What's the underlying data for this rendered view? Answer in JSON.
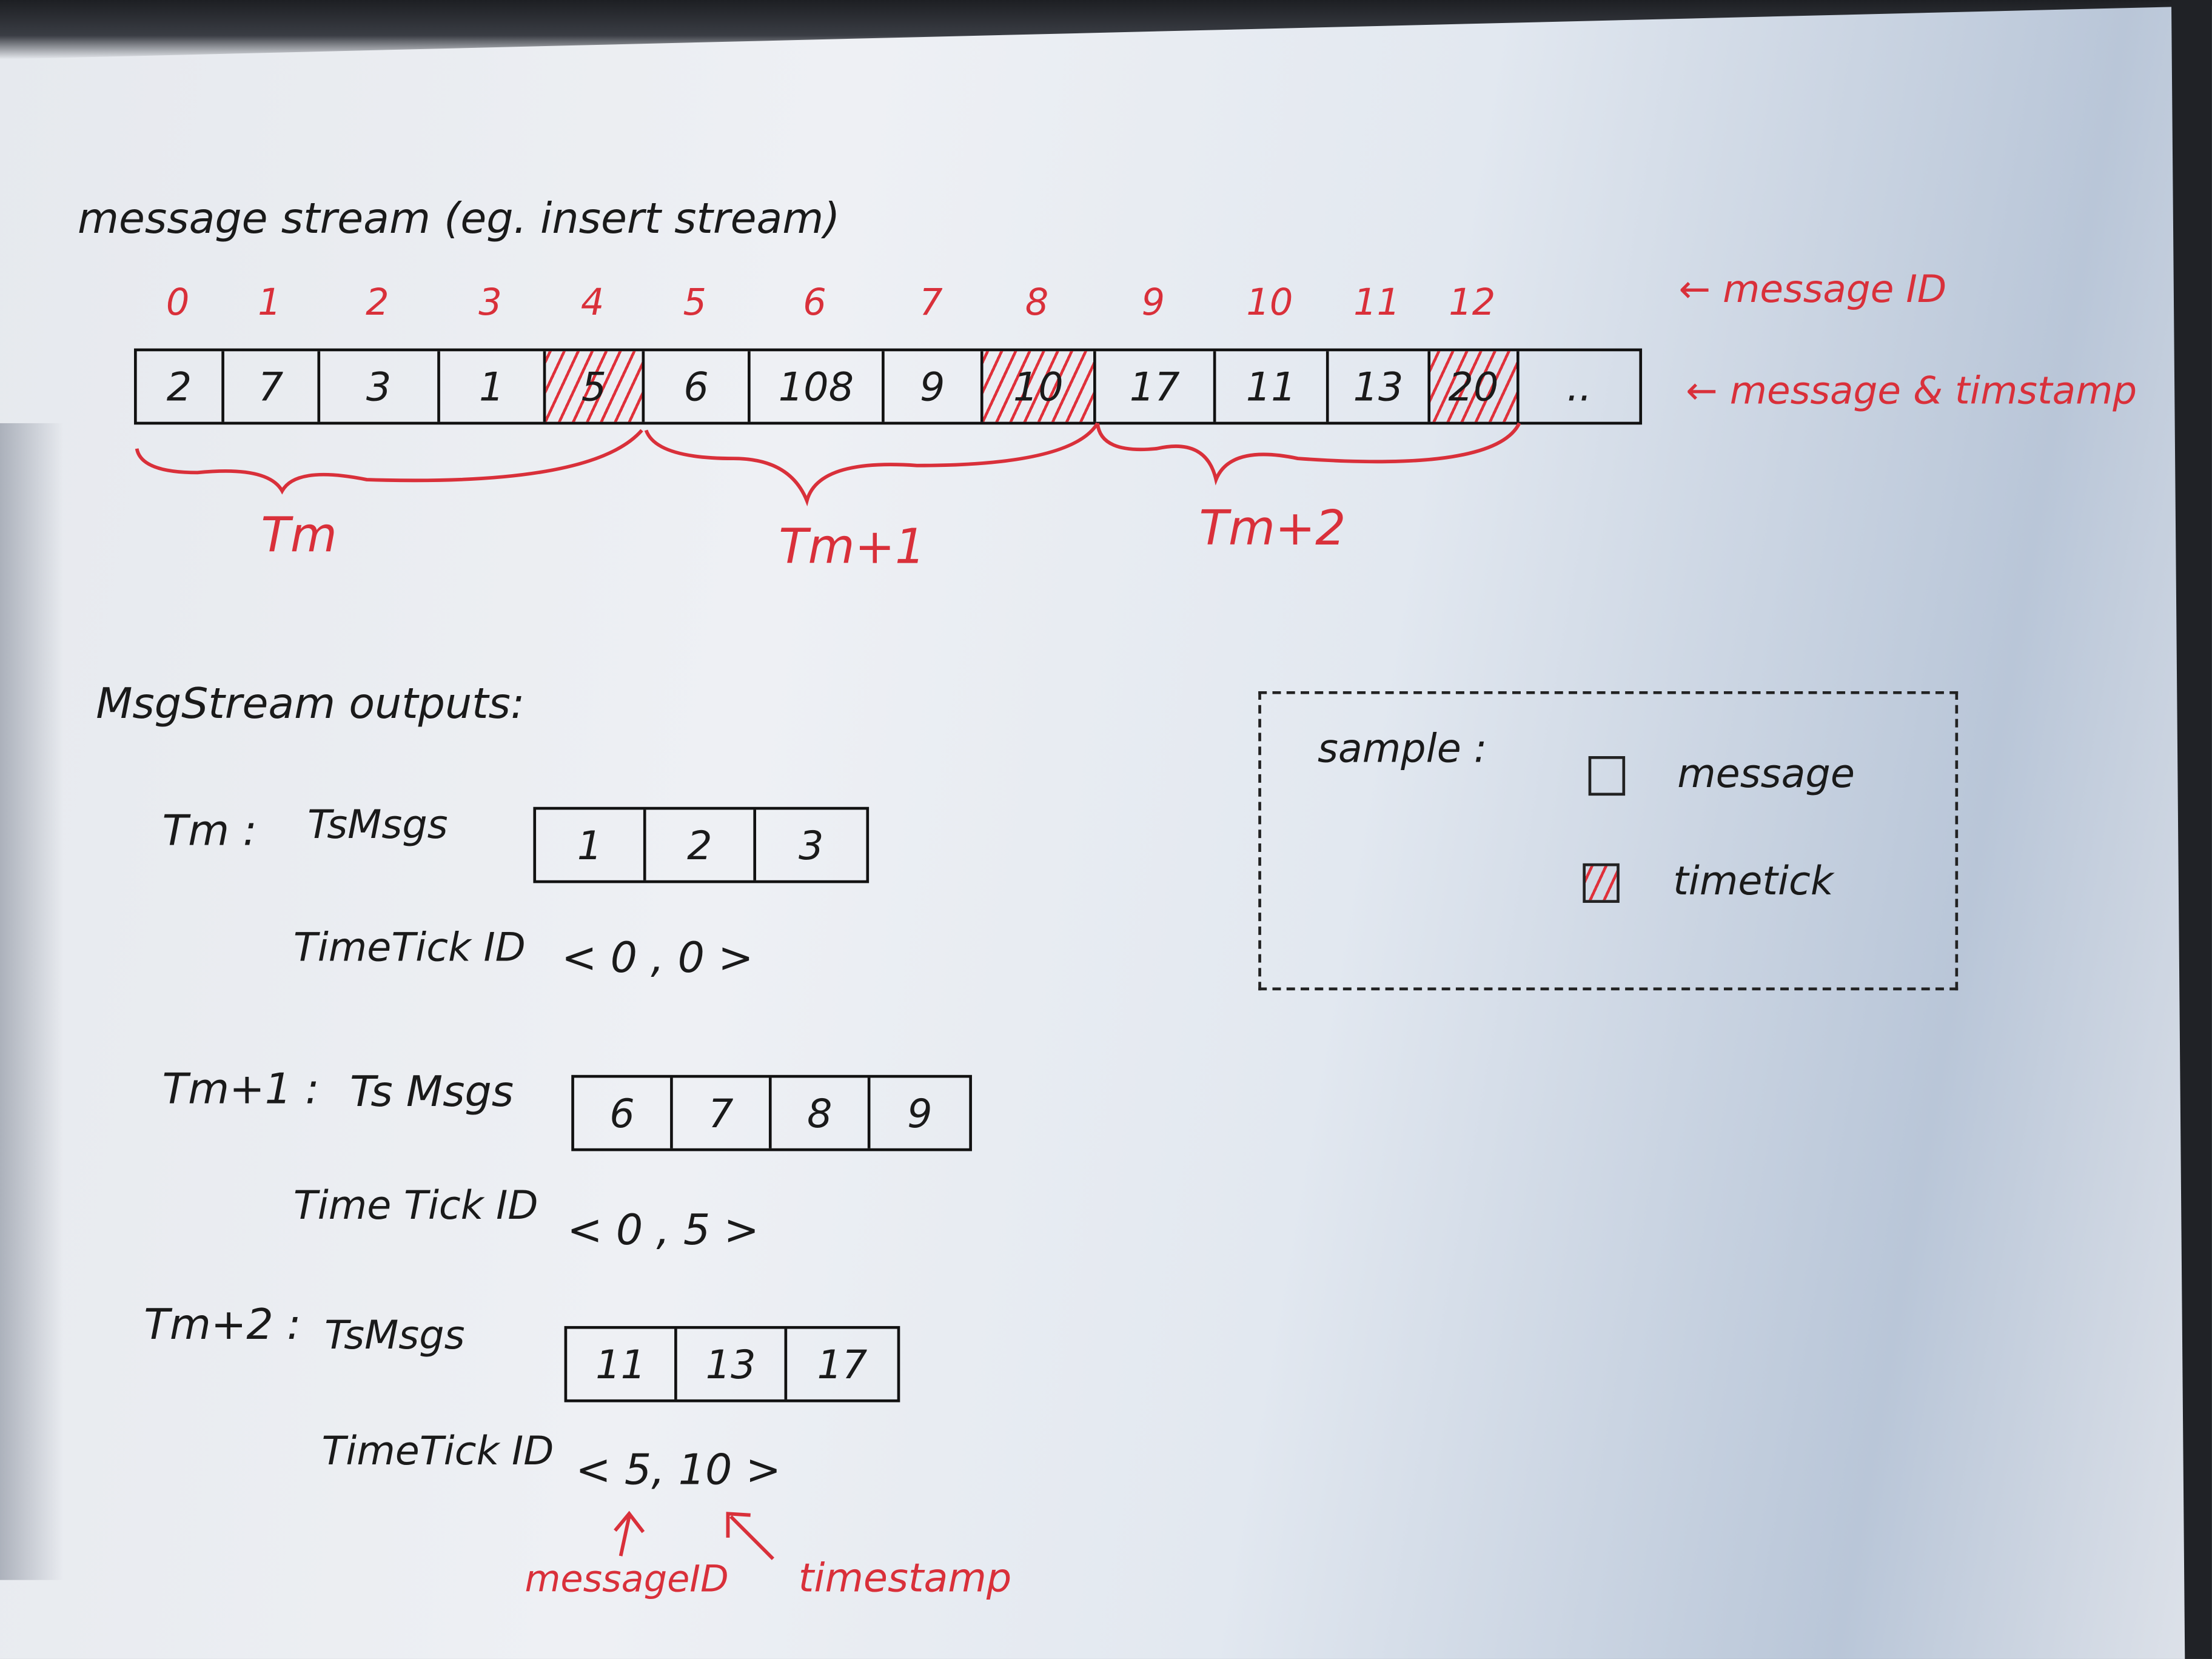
{
  "title": "message stream (eg. insert stream)",
  "stream": {
    "id_label": "← message ID",
    "value_label": "← message & timstamp",
    "cells": [
      {
        "id": "0",
        "value": "2",
        "timetick": false
      },
      {
        "id": "1",
        "value": "7",
        "timetick": false
      },
      {
        "id": "2",
        "value": "3",
        "timetick": false
      },
      {
        "id": "3",
        "value": "1",
        "timetick": false
      },
      {
        "id": "4",
        "value": "5",
        "timetick": true
      },
      {
        "id": "5",
        "value": "6",
        "timetick": false
      },
      {
        "id": "6",
        "value": "108",
        "timetick": false
      },
      {
        "id": "7",
        "value": "9",
        "timetick": false
      },
      {
        "id": "8",
        "value": "10",
        "timetick": true
      },
      {
        "id": "9",
        "value": "17",
        "timetick": false
      },
      {
        "id": "10",
        "value": "11",
        "timetick": false
      },
      {
        "id": "11",
        "value": "13",
        "timetick": false
      },
      {
        "id": "12",
        "value": "20",
        "timetick": true
      },
      {
        "id": "",
        "value": "..",
        "timetick": false
      }
    ],
    "groups": [
      "Tm",
      "Tm+1",
      "Tm+2"
    ]
  },
  "outputs": {
    "heading": "MsgStream outputs:",
    "items": [
      {
        "name": "Tm :",
        "msgs_label": "TsMsgs",
        "msgs": [
          "1",
          "2",
          "3"
        ],
        "tt_label": "TimeTick ID",
        "tt": "< 0 , 0 >"
      },
      {
        "name": "Tm+1 :",
        "msgs_label": "Ts Msgs",
        "msgs": [
          "6",
          "7",
          "8",
          "9"
        ],
        "tt_label": "Time Tick ID",
        "tt": "< 0 , 5 >"
      },
      {
        "name": "Tm+2 :",
        "msgs_label": "TsMsgs",
        "msgs": [
          "11",
          "13",
          "17"
        ],
        "tt_label": "TimeTick ID",
        "tt": "< 5, 10 >"
      }
    ],
    "annot_id": "messageID",
    "annot_ts": "timestamp"
  },
  "legend": {
    "title": "sample :",
    "message": "message",
    "timetick": "timetick"
  },
  "colors": {
    "ink": "#1a1a1a",
    "red": "#d9303a"
  }
}
